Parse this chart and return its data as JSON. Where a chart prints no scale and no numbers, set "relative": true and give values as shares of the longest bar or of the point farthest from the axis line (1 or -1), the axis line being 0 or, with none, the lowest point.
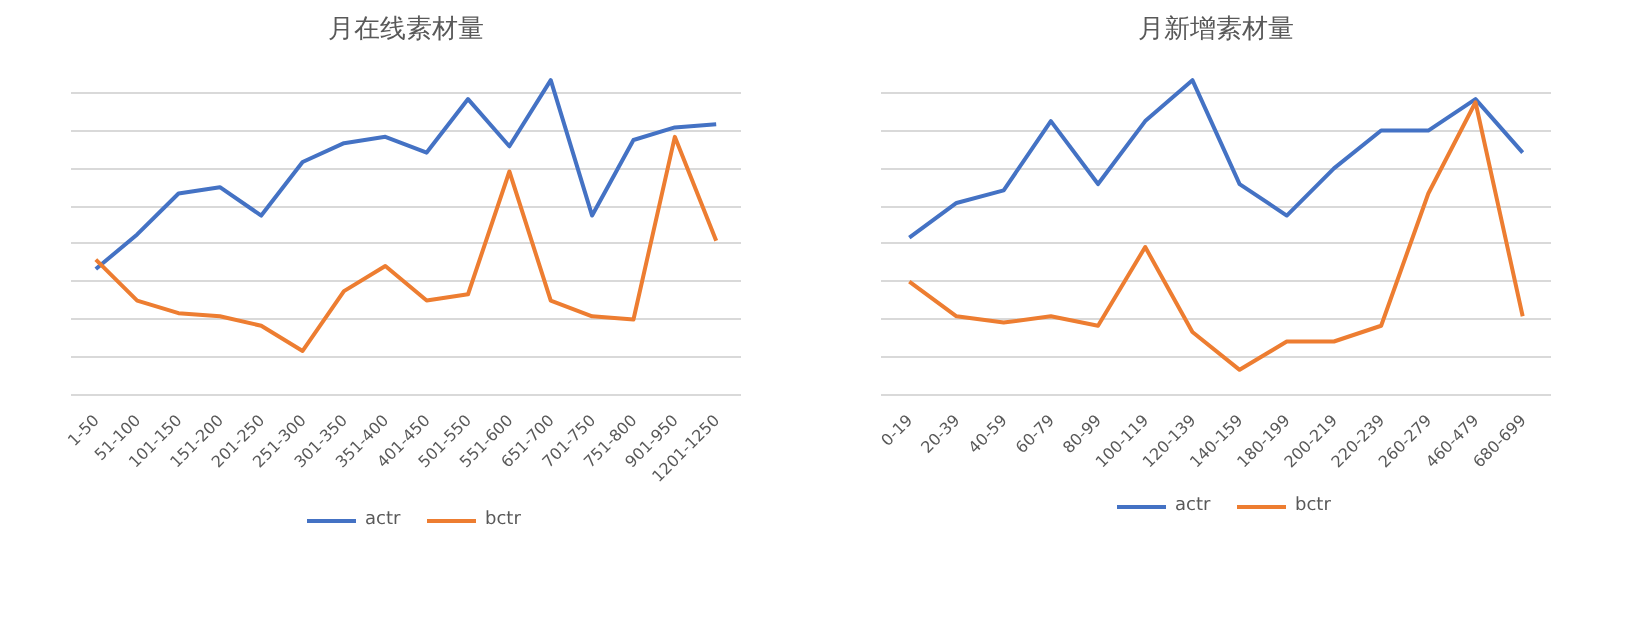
{
  "chart_data": [
    {
      "type": "line",
      "title": "月在线素材量",
      "relative": true,
      "grid": "y",
      "legend": "bottom",
      "categories": [
        "1-50",
        "51-100",
        "101-150",
        "151-200",
        "201-250",
        "251-300",
        "301-350",
        "351-400",
        "401-450",
        "501-550",
        "551-600",
        "651-700",
        "701-750",
        "751-800",
        "901-950",
        "1201-1250"
      ],
      "series": [
        {
          "name": "actr",
          "color": "#4472c4",
          "values": [
            0.4,
            0.51,
            0.64,
            0.66,
            0.57,
            0.74,
            0.8,
            0.82,
            0.77,
            0.94,
            0.79,
            1,
            0.57,
            0.81,
            0.85,
            0.86
          ]
        },
        {
          "name": "bctr",
          "color": "#ed7d31",
          "values": [
            0.43,
            0.3,
            0.26,
            0.25,
            0.22,
            0.14,
            0.33,
            0.41,
            0.3,
            0.32,
            0.71,
            0.3,
            0.25,
            0.24,
            0.82,
            0.49
          ]
        }
      ]
    },
    {
      "type": "line",
      "title": "月新增素材量",
      "relative": true,
      "grid": "y",
      "legend": "bottom",
      "categories": [
        "0-19",
        "20-39",
        "40-59",
        "60-79",
        "80-99",
        "100-119",
        "120-139",
        "140-159",
        "180-199",
        "200-219",
        "220-239",
        "260-279",
        "460-479",
        "680-699"
      ],
      "series": [
        {
          "name": "actr",
          "color": "#4472c4",
          "values": [
            0.5,
            0.61,
            0.65,
            0.87,
            0.67,
            0.87,
            1,
            0.67,
            0.57,
            0.72,
            0.84,
            0.84,
            0.94,
            0.77
          ]
        },
        {
          "name": "bctr",
          "color": "#ed7d31",
          "values": [
            0.36,
            0.25,
            0.23,
            0.25,
            0.22,
            0.47,
            0.2,
            0.08,
            0.17,
            0.17,
            0.22,
            0.64,
            0.93,
            0.25
          ]
        }
      ]
    }
  ]
}
